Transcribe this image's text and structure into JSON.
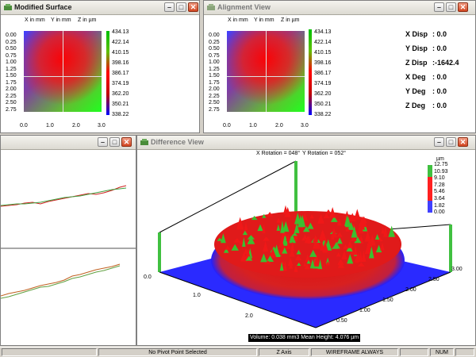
{
  "windows": {
    "modified": {
      "title": "Modified Surface",
      "headers": [
        "X in mm",
        "Y in mm",
        "Z in µm"
      ],
      "yticks": [
        "0.00",
        "0.25",
        "0.50",
        "0.75",
        "1.00",
        "1.25",
        "1.50",
        "1.75",
        "2.00",
        "2.25",
        "2.50",
        "2.75"
      ],
      "xticks": [
        "0.0",
        "1.0",
        "2.0",
        "3.0"
      ],
      "scale": [
        "434.13",
        "422.14",
        "410.15",
        "398.16",
        "386.17",
        "374.19",
        "362.20",
        "350.21",
        "338.22"
      ]
    },
    "alignment": {
      "title": "Alignment View",
      "headers": [
        "X in mm",
        "Y in mm",
        "Z in µm"
      ],
      "yticks": [
        "0.00",
        "0.25",
        "0.50",
        "0.75",
        "1.00",
        "1.25",
        "1.50",
        "1.75",
        "2.00",
        "2.25",
        "2.50",
        "2.75"
      ],
      "xticks": [
        "0.0",
        "1.0",
        "2.0",
        "3.0"
      ],
      "scale": [
        "434.13",
        "422.14",
        "410.15",
        "398.16",
        "386.17",
        "374.19",
        "362.20",
        "350.21",
        "338.22"
      ],
      "readouts": [
        {
          "label": "X Disp",
          "value": ": 0.0"
        },
        {
          "label": "Y Disp",
          "value": ": 0.0"
        },
        {
          "label": "Z Disp",
          "value": ":-1642.4"
        },
        {
          "label": "X Deg",
          "value": ": 0.0"
        },
        {
          "label": "Y Deg",
          "value": ": 0.0"
        },
        {
          "label": "Z Deg",
          "value": ": 0.0"
        }
      ]
    },
    "difference": {
      "title": "Difference View",
      "rotation_x": "X Rotation = 048°",
      "rotation_y": "Y Rotation = 052°",
      "scale": [
        "12.75",
        "10.93",
        "9.10",
        "7.28",
        "5.46",
        "3.64",
        "1.82",
        "0.00"
      ],
      "unit": "µm",
      "front_ticks": [
        "0.0",
        "1.0",
        "2.0"
      ],
      "side_ticks": [
        "3.00",
        "2.50",
        "2.00",
        "1.50",
        "1.00",
        "0.50"
      ],
      "info": "Volume: 0.038 mm3 Mean Height: 4.076 µm"
    }
  },
  "status": {
    "pivot": "No Pivot Point Selected",
    "axis": "Z Axis",
    "mode": "WIREFRAME ALWAYS",
    "num": "NUM"
  },
  "colors": {
    "surface_red": "#ff1010",
    "surface_green": "#30d030",
    "base_blue": "#2020ff"
  }
}
